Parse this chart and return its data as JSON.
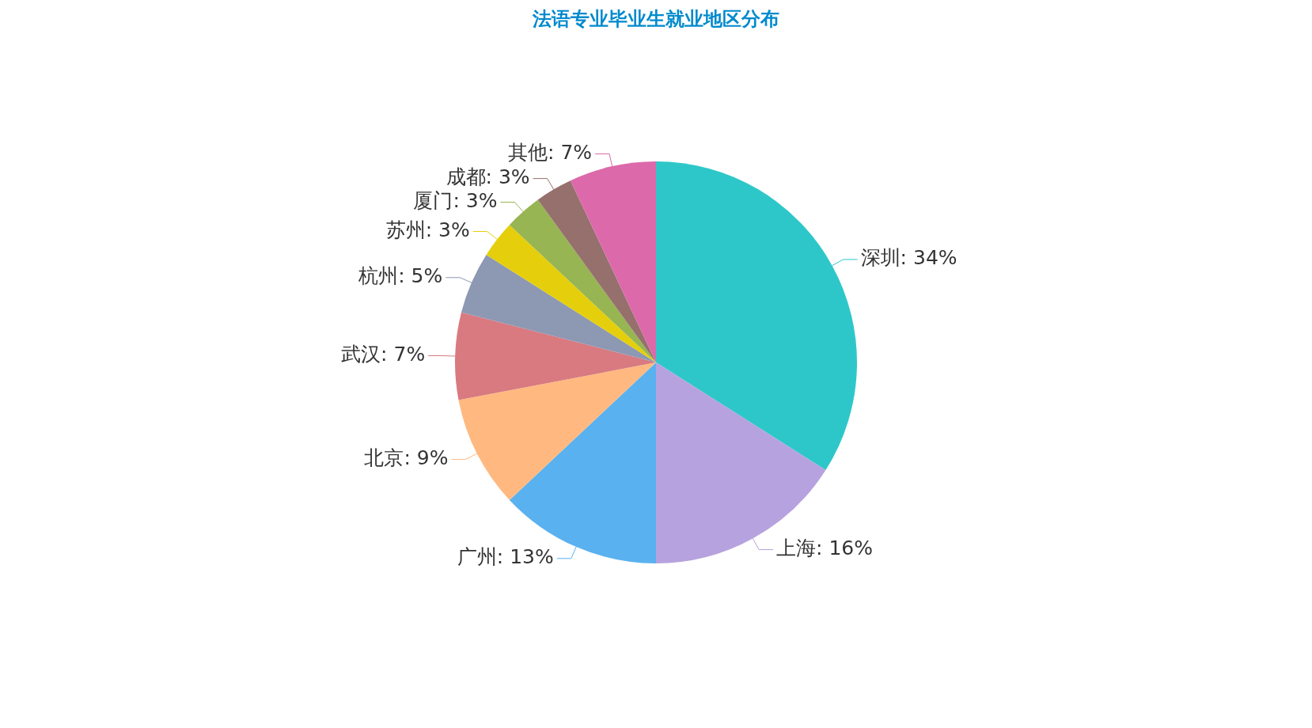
{
  "chart_data": {
    "type": "pie",
    "title": "法语专业毕业生就业地区分布",
    "categories": [
      "深圳",
      "上海",
      "广州",
      "北京",
      "武汉",
      "杭州",
      "苏州",
      "厦门",
      "成都",
      "其他"
    ],
    "values": [
      34,
      16,
      13,
      9,
      7,
      5,
      3,
      3,
      3,
      7
    ],
    "colors": [
      "#2ec7c9",
      "#b6a2de",
      "#5ab1ef",
      "#ffb980",
      "#d87a80",
      "#8d98b3",
      "#e5cf0d",
      "#97b552",
      "#95706d",
      "#dc69aa"
    ],
    "value_labels": [
      ": 34%",
      ": 16%",
      ": 13%",
      ": 9%",
      ": 7%",
      ": 5%",
      ": 3%",
      ": 3%",
      ": 3%",
      ": 7%"
    ],
    "legend": false
  }
}
